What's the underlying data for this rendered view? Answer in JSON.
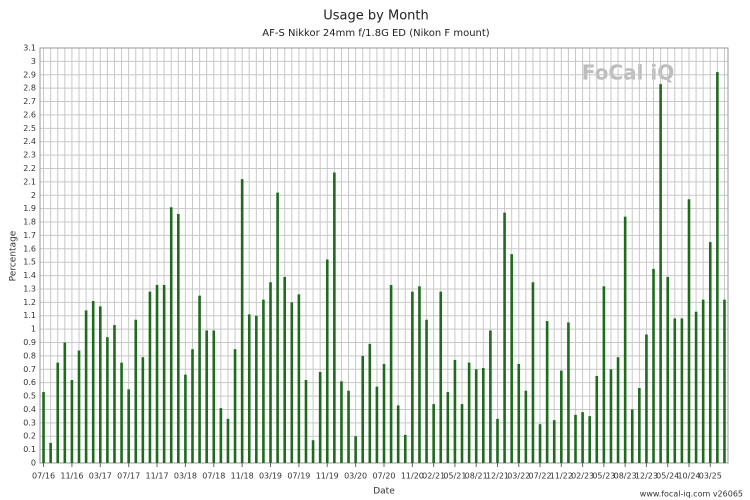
{
  "chart_data": {
    "type": "bar",
    "title": "Usage by Month",
    "subtitle": "AF-S Nikkor 24mm f/1.8G ED (Nikon F mount)",
    "x_label": "Date",
    "y_label": "Percentage",
    "watermark": "FoCal iQ",
    "footer": "www.focal-iq.com  v26065",
    "color": "#1e6b1e",
    "grid": true,
    "ylim": [
      0,
      3.1
    ],
    "yticks": [
      0,
      0.1,
      0.2,
      0.3,
      0.4,
      0.5,
      0.6,
      0.7,
      0.8,
      0.9,
      1,
      1.1,
      1.2,
      1.3,
      1.4,
      1.5,
      1.6,
      1.7,
      1.8,
      1.9,
      2,
      2.1,
      2.2,
      2.3,
      2.4,
      2.5,
      2.6,
      2.7,
      2.8,
      2.9,
      3,
      3.1
    ],
    "categories": [
      "07/16",
      null,
      null,
      null,
      "11/16",
      null,
      null,
      null,
      "03/17",
      null,
      null,
      null,
      "07/17",
      null,
      null,
      null,
      "11/17",
      null,
      null,
      null,
      "03/18",
      null,
      null,
      null,
      "07/18",
      null,
      null,
      null,
      "11/18",
      null,
      null,
      null,
      "03/19",
      null,
      null,
      null,
      "07/19",
      null,
      null,
      null,
      "11/19",
      null,
      null,
      null,
      "03/20",
      null,
      null,
      null,
      "07/20",
      null,
      null,
      null,
      "11/20",
      null,
      null,
      "02/21",
      null,
      null,
      "05/21",
      null,
      null,
      "08/21",
      null,
      null,
      "12/21",
      null,
      null,
      "03/22",
      null,
      null,
      "07/22",
      null,
      null,
      "11/22",
      null,
      null,
      "02/23",
      null,
      null,
      "05/23",
      null,
      null,
      "08/23",
      null,
      null,
      "12/23",
      null,
      null,
      "05/24",
      null,
      null,
      "10/24",
      null,
      null,
      "03/25",
      null,
      null
    ],
    "values": [
      0.53,
      0.15,
      0.75,
      0.9,
      0.62,
      0.84,
      1.14,
      1.21,
      1.17,
      0.94,
      1.03,
      0.75,
      0.55,
      1.07,
      0.79,
      1.28,
      1.33,
      1.33,
      1.91,
      1.86,
      0.66,
      0.85,
      1.25,
      0.99,
      0.99,
      0.41,
      0.33,
      0.85,
      2.12,
      1.11,
      1.1,
      1.22,
      1.35,
      2.02,
      1.39,
      1.2,
      1.26,
      0.62,
      0.17,
      0.68,
      1.52,
      2.17,
      0.61,
      0.54,
      0.2,
      0.8,
      0.89,
      0.57,
      0.74,
      1.33,
      0.43,
      0.21,
      1.28,
      1.32,
      1.07,
      0.44,
      1.28,
      0.53,
      0.77,
      0.44,
      0.75,
      0.7,
      0.71,
      0.99,
      0.33,
      1.87,
      1.56,
      0.74,
      0.54,
      1.35,
      0.29,
      1.06,
      0.32,
      0.69,
      1.05,
      0.36,
      0.38,
      0.35,
      0.65,
      1.32,
      0.7,
      0.79,
      1.84,
      0.4,
      0.56,
      0.96,
      1.45,
      2.83,
      1.39,
      1.08,
      1.08,
      1.97,
      1.13,
      1.22,
      1.65,
      2.92,
      1.22
    ]
  }
}
